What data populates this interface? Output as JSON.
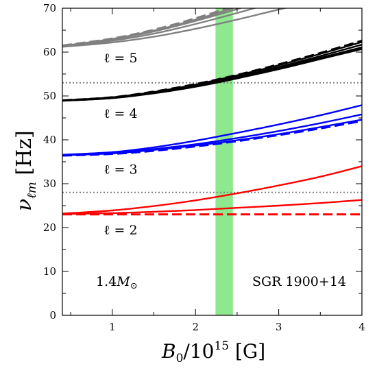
{
  "chart_data": {
    "type": "line",
    "title": "",
    "xlabel": "B_0/10^15 [G]",
    "ylabel": "ν_ℓm [Hz]",
    "xlim": [
      0.4,
      4.0
    ],
    "ylim": [
      0,
      70
    ],
    "x_ticks": [
      1,
      2,
      3,
      4
    ],
    "y_ticks": [
      0,
      10,
      20,
      30,
      40,
      50,
      60,
      70
    ],
    "grid": false,
    "shaded_band": {
      "x_range": [
        2.24,
        2.45
      ],
      "color": "#8ee88e"
    },
    "reference_lines": [
      {
        "y": 28,
        "style": "dotted",
        "color": "#808080"
      },
      {
        "y": 53,
        "style": "dotted",
        "color": "#808080"
      }
    ],
    "groups": [
      {
        "label": "ℓ = 2",
        "color": "#ff0000",
        "series": [
          {
            "style": "solid",
            "x": [
              0.4,
              1,
              1.5,
              2,
              2.5,
              3,
              3.5,
              4
            ],
            "y": [
              23.2,
              23.9,
              24.9,
              26.2,
              27.8,
              29.6,
              31.6,
              34.0
            ]
          },
          {
            "style": "solid",
            "x": [
              0.4,
              1,
              1.5,
              2,
              2.5,
              3,
              3.5,
              4
            ],
            "y": [
              23.1,
              23.3,
              23.6,
              24.0,
              24.5,
              25.0,
              25.6,
              26.3
            ]
          },
          {
            "style": "dashed",
            "x": [
              0.4,
              1,
              2,
              3,
              4
            ],
            "y": [
              23.0,
              23.0,
              23.0,
              23.0,
              23.0
            ]
          }
        ]
      },
      {
        "label": "ℓ = 3",
        "color": "#0000ff",
        "series": [
          {
            "style": "solid",
            "x": [
              0.4,
              1,
              1.5,
              2,
              2.5,
              3,
              3.5,
              4
            ],
            "y": [
              36.6,
              37.2,
              38.3,
              39.8,
              41.6,
              43.5,
              45.6,
              47.9
            ]
          },
          {
            "style": "solid",
            "x": [
              0.4,
              1,
              1.5,
              2,
              2.5,
              3,
              3.5,
              4
            ],
            "y": [
              36.5,
              37.0,
              37.9,
              39.0,
              40.4,
              42.0,
              43.8,
              45.8
            ]
          },
          {
            "style": "solid",
            "x": [
              0.4,
              1,
              1.5,
              2,
              2.5,
              3,
              3.5,
              4
            ],
            "y": [
              36.5,
              36.9,
              37.7,
              38.7,
              39.9,
              41.3,
              42.9,
              44.6
            ]
          },
          {
            "style": "dashed",
            "x": [
              0.4,
              1,
              1.5,
              2,
              2.5,
              3,
              3.5,
              4
            ],
            "y": [
              36.4,
              36.8,
              37.5,
              38.5,
              39.7,
              41.1,
              42.6,
              44.3
            ]
          }
        ]
      },
      {
        "label": "ℓ = 4",
        "color": "#000000",
        "series": [
          {
            "style": "solid",
            "x": [
              0.4,
              1,
              1.5,
              2,
              2.5,
              3,
              3.5,
              4
            ],
            "y": [
              49.0,
              49.7,
              50.9,
              52.6,
              54.7,
              57.0,
              59.6,
              62.3
            ]
          },
          {
            "style": "solid",
            "x": [
              0.4,
              1,
              1.5,
              2,
              2.5,
              3,
              3.5,
              4
            ],
            "y": [
              49.0,
              49.6,
              50.8,
              52.4,
              54.4,
              56.6,
              59.1,
              61.7
            ]
          },
          {
            "style": "solid",
            "x": [
              0.4,
              1,
              1.5,
              2,
              2.5,
              3,
              3.5,
              4
            ],
            "y": [
              48.9,
              49.5,
              50.7,
              52.3,
              54.2,
              56.4,
              58.7,
              61.1
            ]
          },
          {
            "style": "solid",
            "x": [
              0.4,
              1,
              1.5,
              2,
              2.5,
              3,
              3.5,
              4
            ],
            "y": [
              48.9,
              49.5,
              50.6,
              52.1,
              54.0,
              56.1,
              58.4,
              60.7
            ]
          },
          {
            "style": "dashed",
            "x": [
              0.4,
              1,
              1.5,
              2,
              2.5,
              3,
              3.5,
              4
            ],
            "y": [
              49.0,
              49.7,
              51.0,
              52.7,
              54.8,
              57.2,
              59.8,
              62.6
            ]
          }
        ]
      },
      {
        "label": "ℓ = 5",
        "color": "#808080",
        "series": [
          {
            "style": "solid",
            "x": [
              0.4,
              1,
              1.5,
              2,
              2.5,
              3,
              3.2
            ],
            "y": [
              61.2,
              62.2,
              63.5,
              65.3,
              67.4,
              69.7,
              70.6
            ]
          },
          {
            "style": "solid",
            "x": [
              0.4,
              1,
              1.5,
              2,
              2.5,
              2.85
            ],
            "y": [
              61.3,
              62.6,
              64.2,
              66.4,
              68.9,
              70.8
            ]
          },
          {
            "style": "solid",
            "x": [
              0.4,
              1,
              1.5,
              2,
              2.5,
              2.7
            ],
            "y": [
              61.4,
              62.9,
              64.7,
              67.1,
              69.8,
              71.0
            ]
          },
          {
            "style": "solid",
            "x": [
              0.4,
              1,
              1.5,
              2,
              2.5,
              2.65
            ],
            "y": [
              61.4,
              63.0,
              64.9,
              67.4,
              70.3,
              71.2
            ]
          },
          {
            "style": "dashed",
            "x": [
              0.4,
              1,
              1.5,
              2,
              2.5,
              2.6
            ],
            "y": [
              61.5,
              63.1,
              65.1,
              67.7,
              70.7,
              71.3
            ]
          }
        ]
      }
    ],
    "annotations": [
      {
        "text": "1.4M⊙"
      },
      {
        "text": "SGR 1900+14"
      }
    ]
  }
}
